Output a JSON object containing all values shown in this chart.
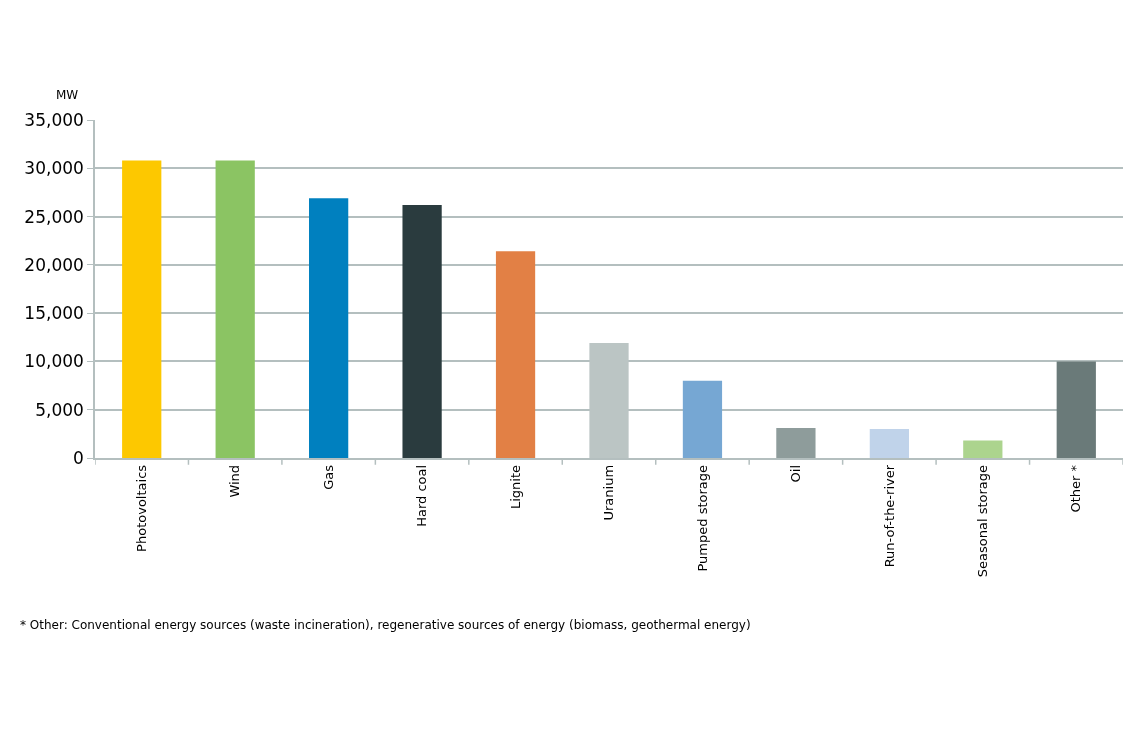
{
  "chart_data": {
    "type": "bar",
    "ylabel": "MW",
    "categories": [
      "Photovoltaics",
      "Wind",
      "Gas",
      "Hard coal",
      "Lignite",
      "Uranium",
      "Pumped storage",
      "Oil",
      "Run-of-the-river",
      "Seasonal storage",
      "Other *"
    ],
    "values": [
      30800,
      30800,
      26900,
      26200,
      21400,
      11900,
      8000,
      3100,
      3000,
      1800,
      10000
    ],
    "colors": [
      "#fdc800",
      "#8bc463",
      "#0080bf",
      "#2a3b3e",
      "#e28045",
      "#bbc5c4",
      "#76a7d3",
      "#8e9c9b",
      "#c0d3ea",
      "#acd48e",
      "#6a7a79"
    ],
    "ylim": [
      0,
      35000
    ],
    "yticks": [
      {
        "value": 0,
        "label": "0"
      },
      {
        "value": 5000,
        "label": "5,000"
      },
      {
        "value": 10000,
        "label": "10,000"
      },
      {
        "value": 15000,
        "label": "15,000"
      },
      {
        "value": 20000,
        "label": "20,000"
      },
      {
        "value": 25000,
        "label": "25,000"
      },
      {
        "value": 30000,
        "label": "30,000"
      },
      {
        "value": 35000,
        "label": "35,000"
      }
    ],
    "grid": "y",
    "annotations": [
      "* Other: Conventional energy sources (waste incineration), regenerative sources of energy (biomass, geothermal energy)"
    ]
  }
}
